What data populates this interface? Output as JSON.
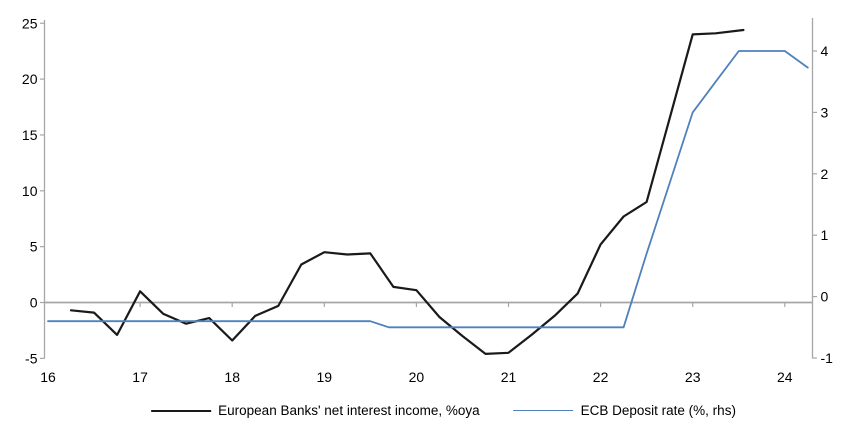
{
  "chart_data": {
    "type": "line",
    "title": "",
    "x_axis": {
      "tick_labels": [
        "16",
        "17",
        "18",
        "19",
        "20",
        "21",
        "22",
        "23",
        "24"
      ],
      "tick_values": [
        16,
        17,
        18,
        19,
        20,
        21,
        22,
        23,
        24
      ],
      "range": [
        16,
        24.3
      ]
    },
    "left_axis": {
      "tick_labels": [
        "-5",
        "0",
        "5",
        "10",
        "15",
        "20",
        "25"
      ],
      "tick_values": [
        -5,
        0,
        5,
        10,
        15,
        20,
        25
      ],
      "range": [
        -5,
        25.5
      ]
    },
    "right_axis": {
      "tick_labels": [
        "-1",
        "0",
        "1",
        "2",
        "3",
        "4"
      ],
      "tick_values": [
        -1,
        0,
        1,
        2,
        3,
        4
      ],
      "range": [
        -1,
        4.55
      ]
    },
    "grid": "zero-line-only",
    "legend_position": "bottom-center",
    "series": [
      {
        "name": "European Banks' net interest income, %oya",
        "axis": "left",
        "color": "#1a1a1a",
        "points": [
          [
            16.25,
            -0.7
          ],
          [
            16.5,
            -0.9
          ],
          [
            16.75,
            -2.9
          ],
          [
            17.0,
            1.0
          ],
          [
            17.25,
            -1.0
          ],
          [
            17.5,
            -1.9
          ],
          [
            17.75,
            -1.4
          ],
          [
            18.0,
            -3.4
          ],
          [
            18.25,
            -1.2
          ],
          [
            18.5,
            -0.3
          ],
          [
            18.75,
            3.4
          ],
          [
            19.0,
            4.5
          ],
          [
            19.25,
            4.3
          ],
          [
            19.5,
            4.4
          ],
          [
            19.75,
            1.4
          ],
          [
            20.0,
            1.1
          ],
          [
            20.25,
            -1.3
          ],
          [
            20.5,
            -3.0
          ],
          [
            20.75,
            -4.6
          ],
          [
            21.0,
            -4.5
          ],
          [
            21.25,
            -2.9
          ],
          [
            21.5,
            -1.2
          ],
          [
            21.75,
            0.8
          ],
          [
            22.0,
            5.2
          ],
          [
            22.25,
            7.7
          ],
          [
            22.5,
            9.0
          ],
          [
            22.75,
            16.5
          ],
          [
            23.0,
            24.0
          ],
          [
            23.25,
            24.1
          ],
          [
            23.55,
            24.4
          ]
        ]
      },
      {
        "name": "ECB Deposit rate (%, rhs)",
        "axis": "right",
        "color": "#4f81bd",
        "points": [
          [
            16.0,
            -0.4
          ],
          [
            16.25,
            -0.4
          ],
          [
            16.5,
            -0.4
          ],
          [
            16.75,
            -0.4
          ],
          [
            17.0,
            -0.4
          ],
          [
            17.25,
            -0.4
          ],
          [
            17.5,
            -0.4
          ],
          [
            17.75,
            -0.4
          ],
          [
            18.0,
            -0.4
          ],
          [
            18.25,
            -0.4
          ],
          [
            18.5,
            -0.4
          ],
          [
            18.75,
            -0.4
          ],
          [
            19.0,
            -0.4
          ],
          [
            19.25,
            -0.4
          ],
          [
            19.5,
            -0.4
          ],
          [
            19.7,
            -0.5
          ],
          [
            20.0,
            -0.5
          ],
          [
            20.25,
            -0.5
          ],
          [
            20.5,
            -0.5
          ],
          [
            20.75,
            -0.5
          ],
          [
            21.0,
            -0.5
          ],
          [
            21.25,
            -0.5
          ],
          [
            21.5,
            -0.5
          ],
          [
            21.75,
            -0.5
          ],
          [
            22.0,
            -0.5
          ],
          [
            22.25,
            -0.5
          ],
          [
            22.5,
            0.7
          ],
          [
            22.75,
            1.85
          ],
          [
            23.0,
            3.0
          ],
          [
            23.25,
            3.5
          ],
          [
            23.5,
            4.0
          ],
          [
            23.75,
            4.0
          ],
          [
            24.0,
            4.0
          ],
          [
            24.25,
            3.73
          ]
        ]
      }
    ],
    "colors": {
      "axis": "#a6a6a6",
      "zero_line": "#a6a6a6",
      "background": "#ffffff",
      "text": "#000000"
    }
  },
  "legend": {
    "series_0_label": "European Banks' net interest income, %oya",
    "series_1_label": "ECB Deposit rate (%, rhs)"
  }
}
